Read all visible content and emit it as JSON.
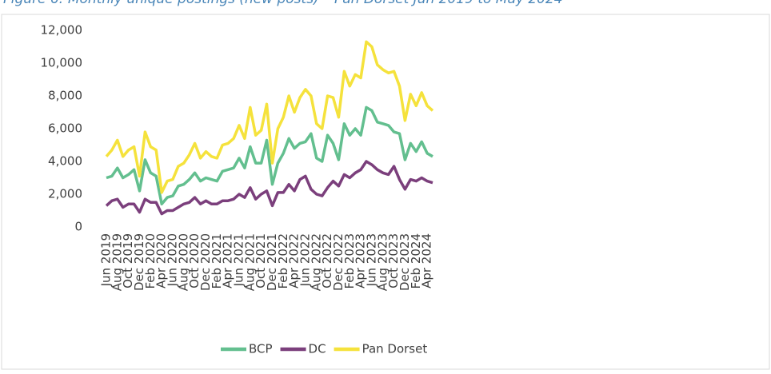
{
  "chart_data": {
    "type": "line",
    "title": "Figure 6: Monthly unique postings (new posts) – Pan Dorset Jun 2019 to May 2024",
    "categories": [
      "Jun 2019",
      null,
      "Aug 2019",
      null,
      "Oct 2019",
      null,
      "Dec 2019",
      null,
      "Feb 2020",
      null,
      "Apr 2020",
      null,
      "Jun 2020",
      null,
      "Aug 2020",
      null,
      "Oct 2020",
      null,
      "Dec 2020",
      null,
      "Feb 2021",
      null,
      "Apr 2021",
      null,
      "Jun 2021",
      null,
      "Aug 2021",
      null,
      "Oct 2021",
      null,
      "Dec 2021",
      null,
      "Feb 2022",
      null,
      "Apr 2022",
      null,
      "Jun 2022",
      null,
      "Aug 2022",
      null,
      "Oct 2022",
      null,
      "Dec 2022",
      null,
      "Feb 2023",
      null,
      "Apr 2023",
      null,
      "Jun 2023",
      null,
      "Aug 2023",
      null,
      "Oct 2023",
      null,
      "Dec 2023",
      null,
      "Feb 2024",
      null,
      "Apr 2024",
      null
    ],
    "series": [
      {
        "name": "BCP",
        "color": "#63bf8f",
        "values": [
          3000,
          3100,
          3600,
          3000,
          3200,
          3500,
          2200,
          4100,
          3300,
          3100,
          1400,
          1800,
          1900,
          2500,
          2600,
          2900,
          3300,
          2800,
          3000,
          2900,
          2800,
          3400,
          3500,
          3600,
          4200,
          3600,
          4900,
          3900,
          3900,
          5300,
          2600,
          3900,
          4500,
          5400,
          4800,
          5100,
          5200,
          5700,
          4200,
          4000,
          5600,
          5100,
          4100,
          6300,
          5600,
          6000,
          5600,
          7300,
          7100,
          6400,
          6300,
          6200,
          5800,
          5700,
          4100,
          5100,
          4600,
          5200,
          4500,
          4300
        ]
      },
      {
        "name": "DC",
        "color": "#7b3f7c",
        "values": [
          1300,
          1600,
          1700,
          1200,
          1400,
          1400,
          900,
          1700,
          1500,
          1500,
          800,
          1000,
          1000,
          1200,
          1400,
          1500,
          1800,
          1400,
          1600,
          1400,
          1400,
          1600,
          1600,
          1700,
          2000,
          1800,
          2400,
          1700,
          2000,
          2200,
          1300,
          2100,
          2100,
          2600,
          2200,
          2900,
          3100,
          2300,
          2000,
          1900,
          2400,
          2800,
          2500,
          3200,
          3000,
          3300,
          3500,
          4000,
          3800,
          3500,
          3300,
          3200,
          3700,
          2900,
          2300,
          2900,
          2800,
          3000,
          2800,
          2700
        ]
      },
      {
        "name": "Pan Dorset",
        "color": "#f5e23c",
        "values": [
          4300,
          4700,
          5300,
          4300,
          4700,
          4900,
          3100,
          5800,
          4900,
          4700,
          2100,
          2800,
          2900,
          3700,
          3900,
          4400,
          5100,
          4200,
          4600,
          4300,
          4200,
          5000,
          5100,
          5400,
          6200,
          5400,
          7300,
          5600,
          5900,
          7500,
          3900,
          6000,
          6700,
          8000,
          7000,
          7900,
          8400,
          8000,
          6300,
          6000,
          8000,
          7900,
          6700,
          9500,
          8600,
          9300,
          9100,
          11300,
          11000,
          9900,
          9600,
          9400,
          9500,
          8600,
          6500,
          8100,
          7400,
          8200,
          7400,
          7100
        ]
      }
    ],
    "ylim": [
      0,
      12000
    ],
    "yticks": [
      {
        "value": 0,
        "label": "0"
      },
      {
        "value": 2000,
        "label": "2,000"
      },
      {
        "value": 4000,
        "label": "4,000"
      },
      {
        "value": 6000,
        "label": "6,000"
      },
      {
        "value": 8000,
        "label": "8,000"
      },
      {
        "value": 10000,
        "label": "10,000"
      },
      {
        "value": 12000,
        "label": "12,000"
      }
    ],
    "legend": "bottom"
  }
}
